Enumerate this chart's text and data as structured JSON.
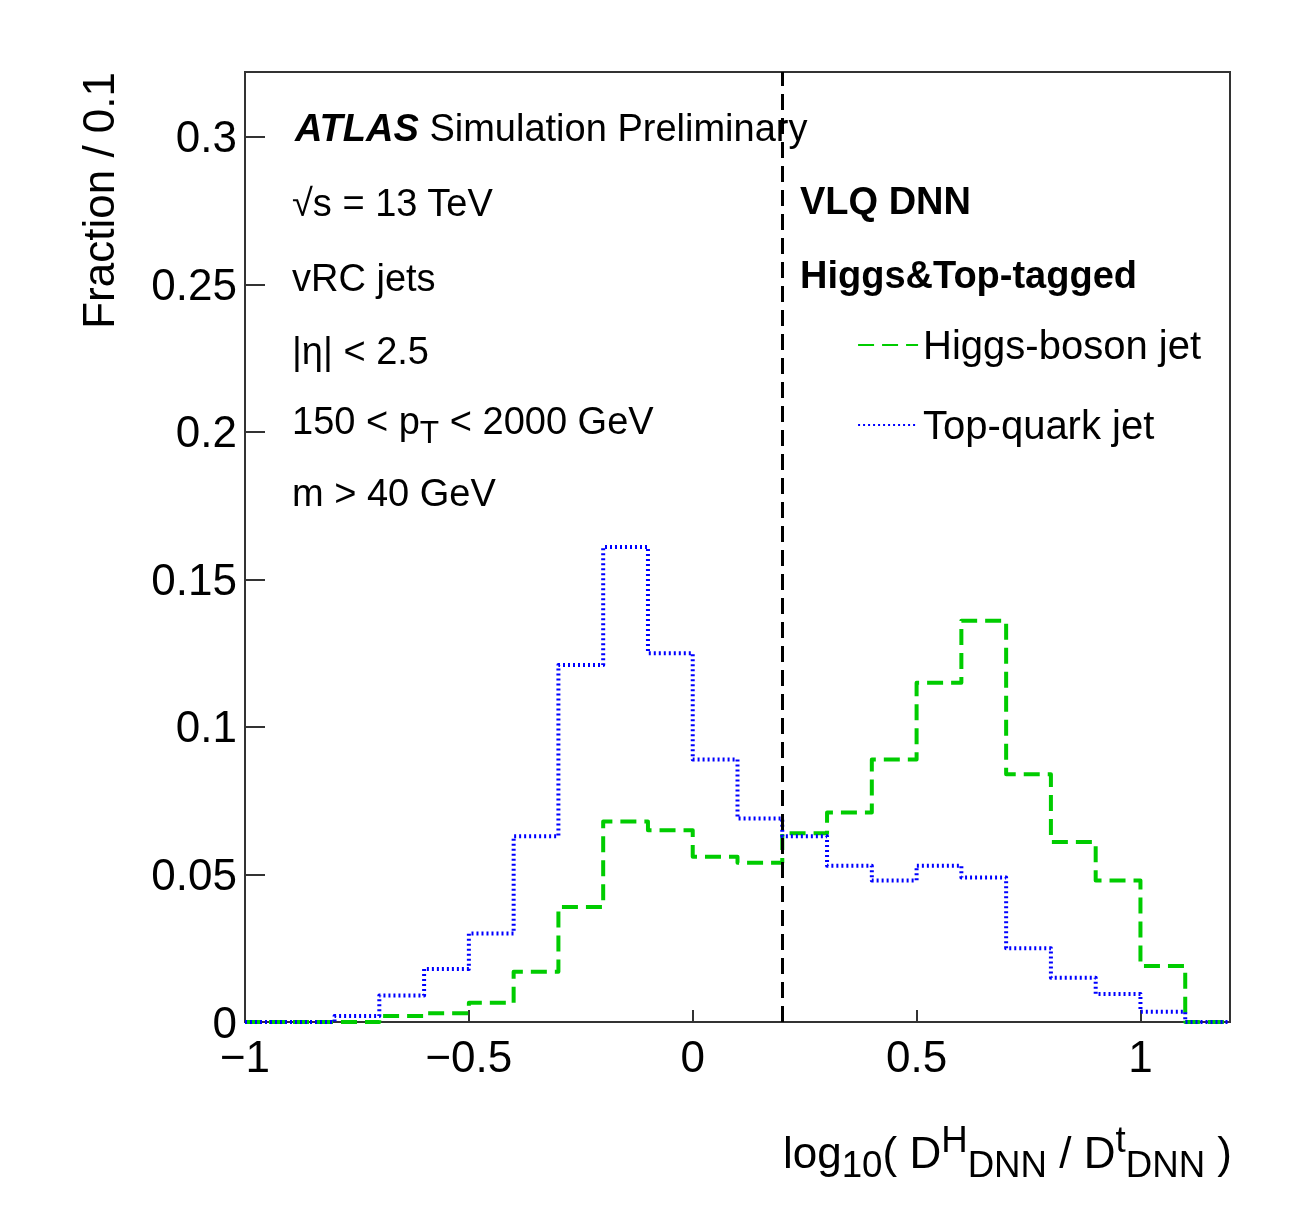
{
  "chart_data": {
    "type": "histogram",
    "xlabel": "log$_{10}$( D$^{H}$$_{DNN}$ / D$^{t}$$_{DNN}$ )",
    "ylabel": "Fraction / 0.1",
    "bins": [
      -1,
      -0.9,
      -0.8,
      -0.7,
      -0.6,
      -0.5,
      -0.4,
      -0.3,
      -0.2,
      -0.1,
      0,
      0.1,
      0.2,
      0.3,
      0.4,
      0.5,
      0.6,
      0.7,
      0.8,
      0.9,
      1,
      1.1,
      1.2
    ],
    "series": [
      {
        "name": "Higgs-boson jet",
        "color": "#00cc00",
        "line_style": "dashed",
        "values": [
          0,
          0,
          0,
          0.002,
          0.003,
          0.0065,
          0.017,
          0.039,
          0.068,
          0.065,
          0.056,
          0.054,
          0.064,
          0.071,
          0.089,
          0.115,
          0.136,
          0.084,
          0.061,
          0.048,
          0.019,
          0
        ]
      },
      {
        "name": "Top-quark jet",
        "color": "#0000ff",
        "line_style": "dotted",
        "values": [
          0,
          0,
          0.002,
          0.009,
          0.018,
          0.03,
          0.063,
          0.121,
          0.161,
          0.125,
          0.089,
          0.069,
          0.063,
          0.053,
          0.048,
          0.053,
          0.049,
          0.025,
          0.015,
          0.0095,
          0.0035,
          0
        ]
      }
    ],
    "xlim": [
      -1,
      1.2
    ],
    "xticks": [
      {
        "value": -1,
        "label": "−1"
      },
      {
        "value": -0.5,
        "label": "−0.5"
      },
      0,
      0.5,
      1
    ],
    "ylim": [
      0,
      0.322
    ],
    "yticks": [
      0,
      0.05,
      0.1,
      0.15,
      0.2,
      0.25,
      0.3
    ],
    "ref_lines": [
      {
        "axis": "x",
        "value": 0.2,
        "color": "#000000",
        "line_style": "dashed"
      }
    ],
    "legend": "top right",
    "grid": false,
    "annotations": [
      "ATLAS Simulation Preliminary",
      "√s = 13 TeV",
      "vRC jets",
      "|η| < 2.5",
      "150 < p$_{T}$ < 2000 GeV",
      "m > 40 GeV",
      "VLQ DNN",
      "Higgs&Top-tagged"
    ]
  }
}
